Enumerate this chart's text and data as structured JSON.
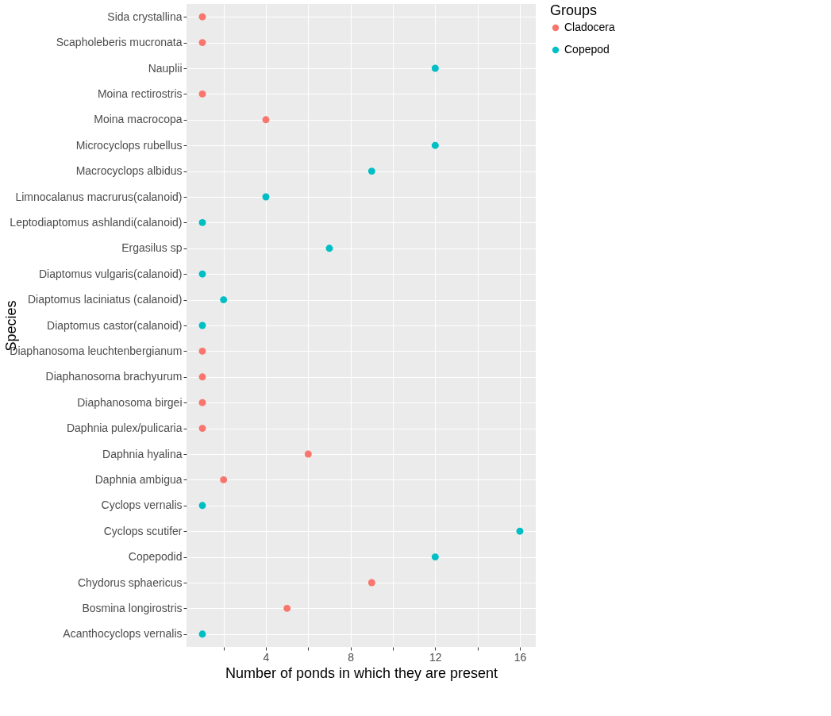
{
  "chart_data": {
    "type": "scatter",
    "xlabel": "Number of ponds in which they are present",
    "ylabel": "Species",
    "legend_title": "Groups",
    "categories": [
      "Sida crystallina",
      "Scapholeberis mucronata",
      "Nauplii",
      "Moina rectirostris",
      "Moina macrocopa",
      "Microcyclops rubellus",
      "Macrocyclops albidus",
      "Limnocalanus macrurus(calanoid)",
      "Leptodiaptomus ashlandi(calanoid)",
      "Ergasilus sp",
      "Diaptomus vulgaris(calanoid)",
      "Diaptomus laciniatus (calanoid)",
      "Diaptomus castor(calanoid)",
      "Diaphanosoma leuchtenbergianum",
      "Diaphanosoma brachyurum",
      "Diaphanosoma birgei",
      "Daphnia pulex/pulicaria",
      "Daphnia hyalina",
      "Daphnia ambigua",
      "Cyclops vernalis",
      "Cyclops scutifer",
      "Copepodid",
      "Chydorus sphaericus",
      "Bosmina longirostris",
      "Acanthocyclops vernalis"
    ],
    "orientation": "horizontal",
    "series": [
      {
        "name": "Cladocera",
        "color": "#f8766d",
        "values": [
          1,
          1,
          null,
          1,
          4,
          null,
          null,
          null,
          null,
          null,
          null,
          null,
          null,
          1,
          1,
          1,
          1,
          6,
          2,
          null,
          null,
          null,
          9,
          5,
          null
        ]
      },
      {
        "name": "Copepod",
        "color": "#00bfc4",
        "values": [
          null,
          null,
          12,
          null,
          null,
          12,
          9,
          4,
          1,
          7,
          1,
          2,
          1,
          null,
          null,
          null,
          null,
          null,
          null,
          1,
          16,
          12,
          null,
          null,
          1
        ]
      }
    ],
    "xlim": [
      0.25,
      16.75
    ],
    "xticks": [
      {
        "value": 2,
        "label": null
      },
      4,
      {
        "value": 6,
        "label": null
      },
      8,
      {
        "value": 10,
        "label": null
      },
      12,
      {
        "value": 14,
        "label": null
      },
      16
    ],
    "grid": true,
    "legend": "right",
    "marker": "circle"
  }
}
